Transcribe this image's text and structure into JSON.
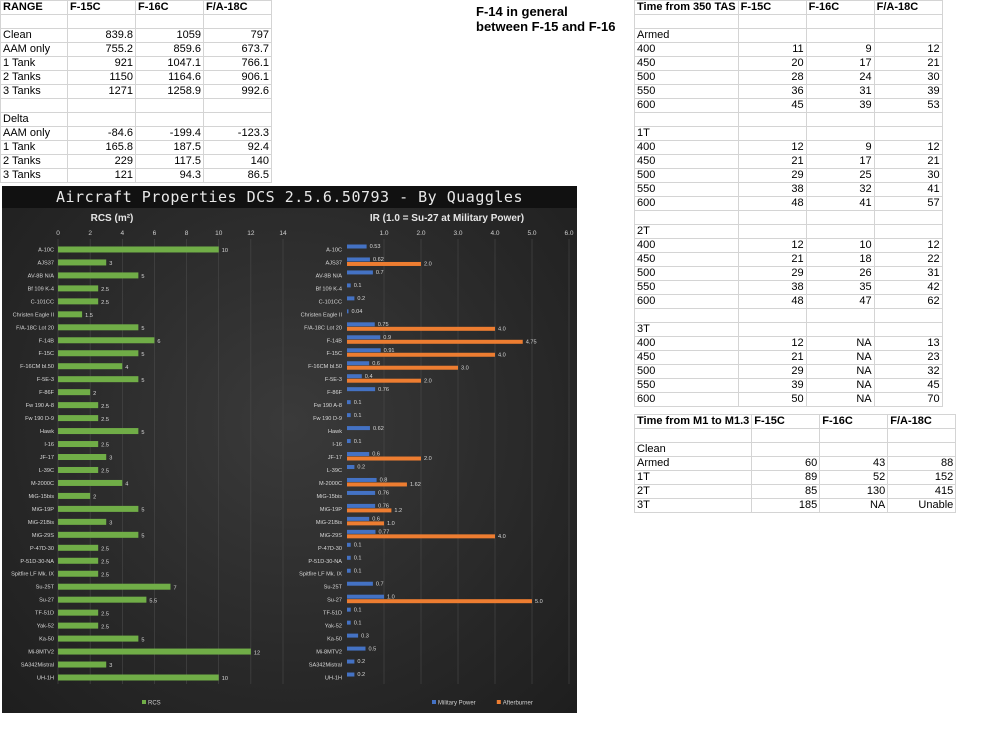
{
  "note": {
    "line1": "F-14 in general",
    "line2": "between F-15 and F-16"
  },
  "range_table": {
    "header": [
      "RANGE",
      "F-15C",
      "F-16C",
      "F/A-18C"
    ],
    "rows": [
      [
        "",
        "",
        "",
        ""
      ],
      [
        "Clean",
        "839.8",
        "1059",
        "797"
      ],
      [
        "AAM only",
        "755.2",
        "859.6",
        "673.7"
      ],
      [
        "1 Tank",
        "921",
        "1047.1",
        "766.1"
      ],
      [
        "2 Tanks",
        "1150",
        "1164.6",
        "906.1"
      ],
      [
        "3 Tanks",
        "1271",
        "1258.9",
        "992.6"
      ],
      [
        "",
        "",
        "",
        ""
      ],
      [
        "Delta",
        "",
        "",
        ""
      ],
      [
        "AAM only",
        "-84.6",
        "-199.4",
        "-123.3"
      ],
      [
        "1 Tank",
        "165.8",
        "187.5",
        "92.4"
      ],
      [
        "2 Tanks",
        "229",
        "117.5",
        "140"
      ],
      [
        "3 Tanks",
        "121",
        "94.3",
        "86.5"
      ]
    ]
  },
  "tas_table": {
    "header": [
      "Time from 350 TAS",
      "F-15C",
      "F-16C",
      "F/A-18C"
    ],
    "rows": [
      [
        "",
        "",
        "",
        ""
      ],
      [
        "Armed",
        "",
        "",
        ""
      ],
      [
        "400",
        "11",
        "9",
        "12"
      ],
      [
        "450",
        "20",
        "17",
        "21"
      ],
      [
        "500",
        "28",
        "24",
        "30"
      ],
      [
        "550",
        "36",
        "31",
        "39"
      ],
      [
        "600",
        "45",
        "39",
        "53"
      ],
      [
        "",
        "",
        "",
        ""
      ],
      [
        "1T",
        "",
        "",
        ""
      ],
      [
        "400",
        "12",
        "9",
        "12"
      ],
      [
        "450",
        "21",
        "17",
        "21"
      ],
      [
        "500",
        "29",
        "25",
        "30"
      ],
      [
        "550",
        "38",
        "32",
        "41"
      ],
      [
        "600",
        "48",
        "41",
        "57"
      ],
      [
        "",
        "",
        "",
        ""
      ],
      [
        "2T",
        "",
        "",
        ""
      ],
      [
        "400",
        "12",
        "10",
        "12"
      ],
      [
        "450",
        "21",
        "18",
        "22"
      ],
      [
        "500",
        "29",
        "26",
        "31"
      ],
      [
        "550",
        "38",
        "35",
        "42"
      ],
      [
        "600",
        "48",
        "47",
        "62"
      ],
      [
        "",
        "",
        "",
        ""
      ],
      [
        "3T",
        "",
        "",
        ""
      ],
      [
        "400",
        "12",
        "NA",
        "13"
      ],
      [
        "450",
        "21",
        "NA",
        "23"
      ],
      [
        "500",
        "29",
        "NA",
        "32"
      ],
      [
        "550",
        "39",
        "NA",
        "45"
      ],
      [
        "600",
        "50",
        "NA",
        "70"
      ]
    ]
  },
  "mach_table": {
    "header": [
      "Time from M1 to M1.3",
      "F-15C",
      "F-16C",
      "F/A-18C"
    ],
    "rows": [
      [
        "",
        "",
        "",
        ""
      ],
      [
        "Clean",
        "",
        "",
        ""
      ],
      [
        "Armed",
        "60",
        "43",
        "88"
      ],
      [
        "1T",
        "89",
        "52",
        "152"
      ],
      [
        "2T",
        "85",
        "130",
        "415"
      ],
      [
        "3T",
        "185",
        "NA",
        "Unable"
      ]
    ]
  },
  "chart_data": [
    {
      "type": "bar",
      "orientation": "horizontal",
      "title": "RCS (m²)",
      "xlim": [
        0,
        14
      ],
      "ticks": [
        "0",
        "2",
        "4",
        "6",
        "8",
        "10",
        "12",
        "14"
      ],
      "categories": [
        "A-10C",
        "AJS37",
        "AV-8B N/A",
        "Bf 109 K-4",
        "C-101CC",
        "Christen Eagle II",
        "F/A-18C Lot 20",
        "F-14B",
        "F-15C",
        "F-16CM bl.50",
        "F-5E-3",
        "F-86F",
        "Fw 190 A-8",
        "Fw 190 D-9",
        "Hawk",
        "I-16",
        "JF-17",
        "L-39C",
        "M-2000C",
        "MiG-15bis",
        "MiG-19P",
        "MiG-21Bis",
        "MiG-29S",
        "P-47D-30",
        "P-51D-30-NA",
        "Spitfire LF Mk. IX",
        "Su-25T",
        "Su-27",
        "TF-51D",
        "Yak-52",
        "Ka-50",
        "Mi-8MTV2",
        "SA342Mistral",
        "UH-1H"
      ],
      "series": [
        {
          "name": "RCS",
          "color": "#70ad47",
          "values": [
            10,
            3,
            5,
            2.5,
            2.5,
            1.5,
            5,
            6,
            5,
            4,
            5,
            2,
            2.5,
            2.5,
            5,
            2.5,
            3,
            2.5,
            4,
            2,
            5,
            3,
            5,
            2.5,
            2.5,
            2.5,
            7,
            5.5,
            2.5,
            2.5,
            5,
            12,
            3,
            10
          ]
        }
      ],
      "legend": "bottom-center",
      "grid": true
    },
    {
      "type": "bar",
      "orientation": "horizontal",
      "title": "IR (1.0 = Su-27 at Military Power)",
      "xlim": [
        0,
        6
      ],
      "ticks": [
        "1.0",
        "2.0",
        "3.0",
        "4.0",
        "5.0",
        "6.0"
      ],
      "categories": [
        "A-10C",
        "AJS37",
        "AV-8B N/A",
        "Bf 109 K-4",
        "C-101CC",
        "Christen Eagle II",
        "F/A-18C Lot 20",
        "F-14B",
        "F-15C",
        "F-16CM bl.50",
        "F-5E-3",
        "F-86F",
        "Fw 190 A-8",
        "Fw 190 D-9",
        "Hawk",
        "I-16",
        "JF-17",
        "L-39C",
        "M-2000C",
        "MiG-15bis",
        "MiG-19P",
        "MiG-21Bis",
        "MiG-29S",
        "P-47D-30",
        "P-51D-30-NA",
        "Spitfire LF Mk. IX",
        "Su-25T",
        "Su-27",
        "TF-51D",
        "Yak-52",
        "Ka-50",
        "Mi-8MTV2",
        "SA342Mistral",
        "UH-1H"
      ],
      "series": [
        {
          "name": "Military Power",
          "color": "#4472c4",
          "values": [
            0.53,
            0.62,
            0.7,
            0.1,
            0.2,
            0.04,
            0.75,
            0.9,
            0.91,
            0.6,
            0.4,
            0.76,
            0.1,
            0.1,
            0.62,
            0.1,
            0.6,
            0.2,
            0.8,
            0.76,
            0.76,
            0.6,
            0.77,
            0.1,
            0.1,
            0.1,
            0.7,
            1.0,
            0.1,
            0.1,
            0.3,
            0.5,
            0.2,
            0.2
          ],
          "labels": [
            "0.53",
            "0.62",
            "0.7",
            "0.1",
            "0.2",
            "0.04",
            "0.75",
            "0.9",
            "0.91",
            "0.6",
            "0.4",
            "0.76",
            "0.1",
            "0.1",
            "0.62",
            "0.1",
            "0.6",
            "0.2",
            "0.8",
            "0.76",
            "0.76",
            "0.6",
            "0.77",
            "0.1",
            "0.1",
            "0.1",
            "0.7",
            "1.0",
            "0.1",
            "0.1",
            "0.3",
            "0.5",
            "0.2",
            "0.2"
          ]
        },
        {
          "name": "Afterburner",
          "color": "#ed7d31",
          "values": [
            null,
            2.0,
            null,
            null,
            null,
            null,
            4.0,
            4.75,
            4.0,
            3.0,
            2.0,
            null,
            null,
            null,
            null,
            null,
            2.0,
            null,
            1.62,
            null,
            1.2,
            1.0,
            4.0,
            null,
            null,
            null,
            null,
            5.0,
            null,
            null,
            null,
            null,
            null,
            null
          ],
          "labels": [
            "",
            "2.0",
            "",
            "",
            "",
            "",
            "4.0",
            "4.75",
            "4.0",
            "3.0",
            "2.0",
            "",
            "",
            "",
            "",
            "",
            "2.0",
            "",
            "1.62",
            "",
            "1.2",
            "1.0",
            "4.0",
            "",
            "",
            "",
            "",
            "5.0",
            "",
            "",
            "",
            "",
            "",
            ""
          ]
        }
      ],
      "legend": "bottom-center",
      "grid": true
    }
  ],
  "chart_panel": {
    "title": "Aircraft Properties DCS 2.5.6.50793 - By Quaggles"
  }
}
